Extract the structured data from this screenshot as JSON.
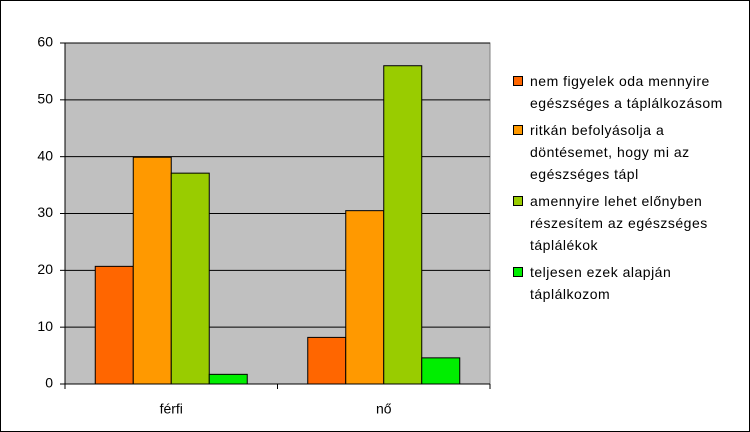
{
  "chart_data": {
    "type": "bar",
    "categories": [
      "férfi",
      "nő"
    ],
    "series": [
      {
        "name": "nem figyelek oda mennyire egészséges a táplálkozásom",
        "color": "#ff6600",
        "values": [
          20.7,
          8.2
        ]
      },
      {
        "name": "ritkán befolyásolja a döntésemet, hogy mi az egészséges tápl",
        "color": "#ff9900",
        "values": [
          39.9,
          30.5
        ]
      },
      {
        "name": "amennyire lehet előnyben részesítem az egészséges táplálékok",
        "color": "#99cc00",
        "values": [
          37.1,
          56
        ]
      },
      {
        "name": "teljesen ezek alapján táplálkozom",
        "color": "#00ee00",
        "values": [
          1.7,
          4.6
        ]
      }
    ],
    "ylim": [
      0,
      60
    ],
    "yticks": [
      0,
      10,
      20,
      30,
      40,
      50,
      60
    ],
    "grid": true,
    "legend": "right"
  }
}
